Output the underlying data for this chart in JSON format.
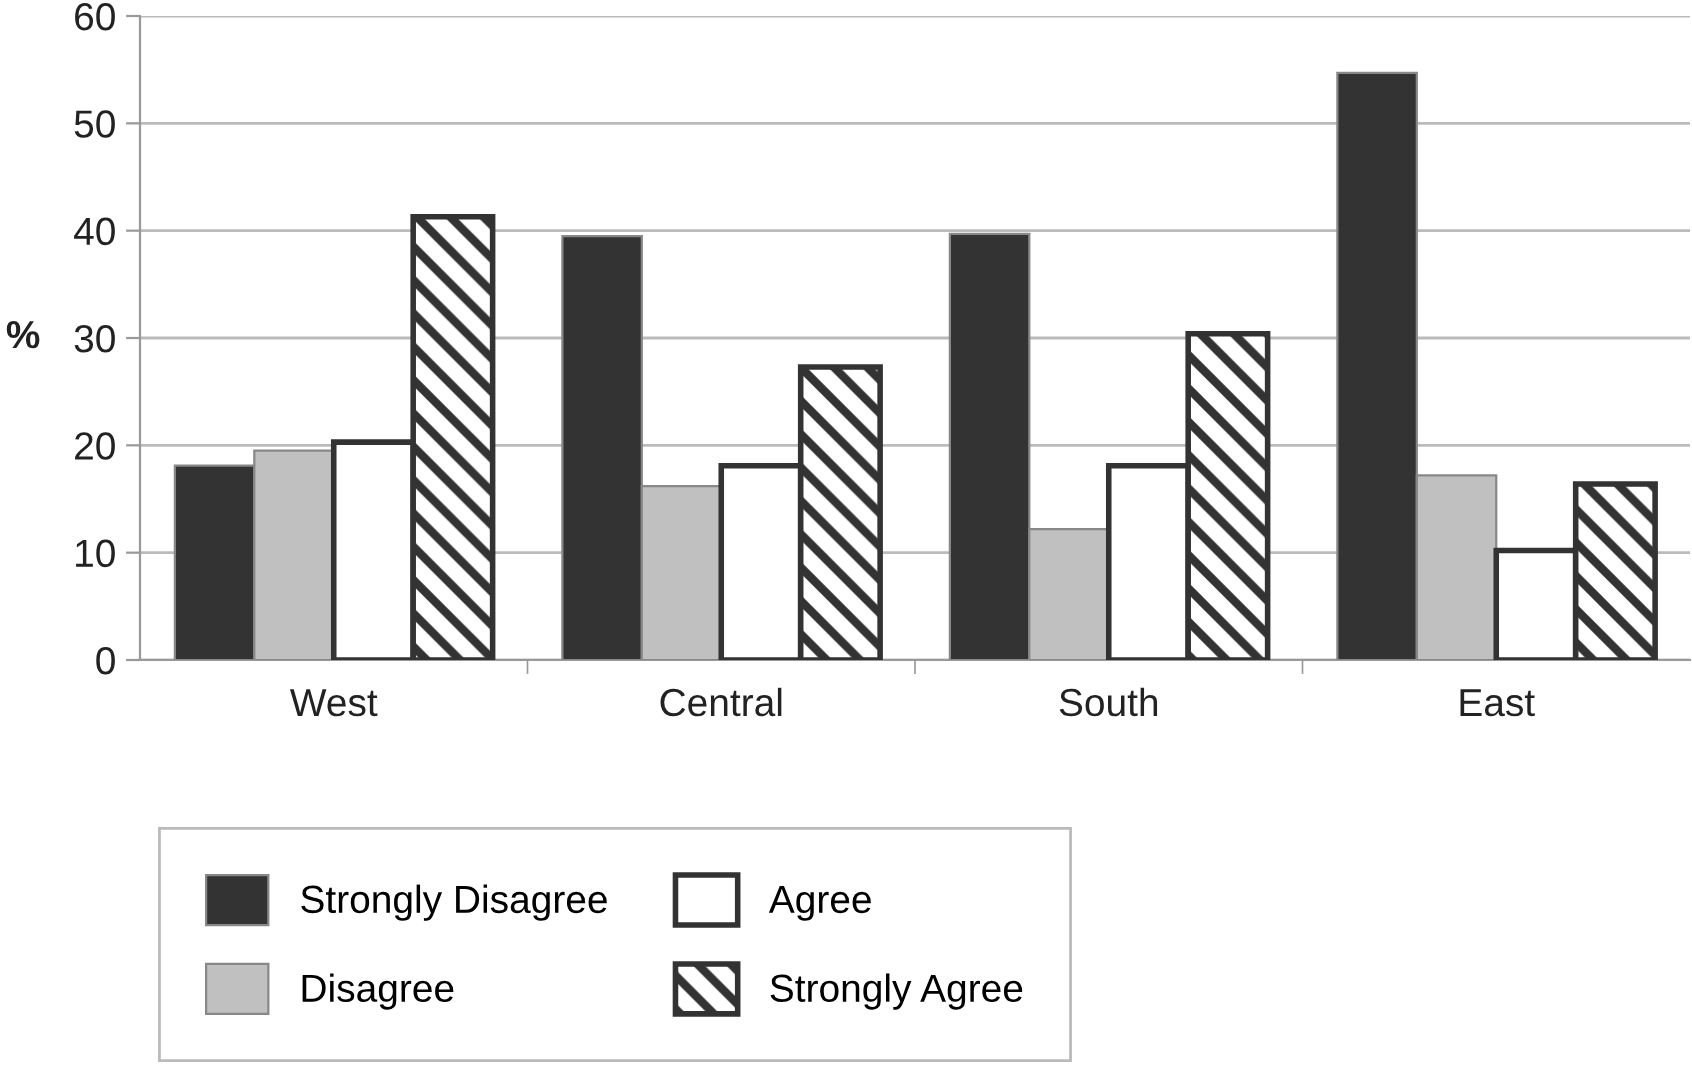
{
  "chart_data": {
    "type": "bar",
    "ylabel": "%",
    "categories": [
      "West",
      "Central",
      "South",
      "East"
    ],
    "series": [
      {
        "name": "Strongly Disagree",
        "color": "#333333",
        "values": [
          18.1,
          39.5,
          39.7,
          54.7
        ]
      },
      {
        "name": "Disagree",
        "color": "#c0c0c0",
        "values": [
          19.5,
          16.2,
          12.2,
          17.2
        ]
      },
      {
        "name": "Agree",
        "color": "#ffffff",
        "values": [
          20.3,
          18.1,
          18.1,
          10.2
        ]
      },
      {
        "name": "Strongly Agree",
        "color": "#333333",
        "values": [
          41.3,
          27.3,
          30.4,
          16.4
        ]
      }
    ],
    "ylim": [
      0,
      60
    ],
    "yticks": [
      0,
      10,
      20,
      30,
      40,
      50,
      60
    ],
    "grid": "y",
    "legend": "bottom"
  }
}
